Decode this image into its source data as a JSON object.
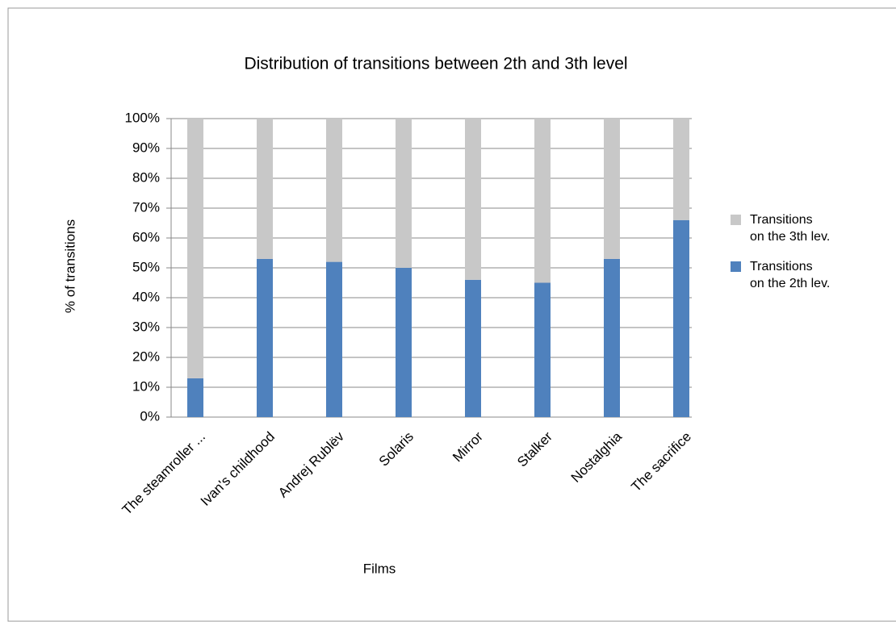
{
  "chart_data": {
    "type": "stacked_bar_100",
    "title": "Distribution of transitions between 2th and 3th level",
    "x_label": "Films",
    "y_label": "% of transitions",
    "categories": [
      "The steamroller ...",
      "Ivan's childhood",
      "Andrej Rublëv",
      "Solaris",
      "Mirror",
      "Stalker",
      "Nostalghia",
      "The sacrifice"
    ],
    "series": [
      {
        "name": "Transitions\non the 2th lev.",
        "color": "#4f81bd",
        "values": [
          13,
          53,
          52,
          50,
          46,
          45,
          53,
          66
        ]
      },
      {
        "name": "Transitions\non the 3th lev.",
        "color": "#c8c8c8",
        "values": [
          87,
          47,
          48,
          50,
          54,
          55,
          47,
          34
        ]
      }
    ],
    "ylim": [
      0,
      100
    ],
    "yticks": [
      {
        "value": 0,
        "label": "0%"
      },
      {
        "value": 10,
        "label": "10%"
      },
      {
        "value": 20,
        "label": "20%"
      },
      {
        "value": 30,
        "label": "30%"
      },
      {
        "value": 40,
        "label": "40%"
      },
      {
        "value": 50,
        "label": "50%"
      },
      {
        "value": 60,
        "label": "60%"
      },
      {
        "value": 70,
        "label": "70%"
      },
      {
        "value": 80,
        "label": "80%"
      },
      {
        "value": 90,
        "label": "90%"
      },
      {
        "value": 100,
        "label": "100%"
      }
    ],
    "grid": true,
    "legend_position": "right"
  }
}
